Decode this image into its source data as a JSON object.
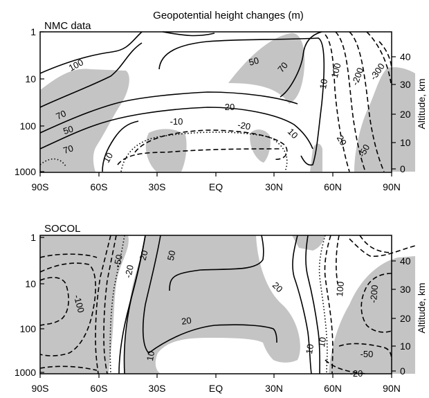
{
  "chart_data": [
    {
      "type": "contour",
      "title": "Geopotential height changes (m)",
      "panel_label": "NMC data",
      "x_ticks": [
        "90S",
        "60S",
        "30S",
        "EQ",
        "30N",
        "60N",
        "90N"
      ],
      "y_left_ticks": [
        "1",
        "10",
        "100",
        "1000"
      ],
      "y_right_ticks": [
        "40",
        "30",
        "20",
        "10",
        "0"
      ],
      "y_right_label": "Altitude, km",
      "contour_labels": [
        "100",
        "70",
        "50",
        "70",
        "20",
        "10",
        "-10",
        "-20",
        "10",
        "50",
        "70",
        "100",
        "-200",
        "-300",
        "10",
        "20",
        "-50",
        "-100",
        "70",
        "50",
        "70",
        "10"
      ],
      "shading": "gray"
    },
    {
      "type": "contour",
      "panel_label": "SOCOL",
      "x_ticks": [
        "90S",
        "60S",
        "30S",
        "EQ",
        "30N",
        "60N",
        "90N"
      ],
      "y_left_ticks": [
        "1",
        "10",
        "100",
        "1000"
      ],
      "y_right_ticks": [
        "40",
        "30",
        "20",
        "10",
        "0"
      ],
      "y_right_label": "Altitude, km",
      "contour_labels": [
        "-50",
        "-20",
        "20",
        "50",
        "-100",
        "20",
        "10",
        "20",
        "10",
        "10",
        "100",
        "-200",
        "-50",
        "-20"
      ],
      "shading": "gray"
    }
  ]
}
